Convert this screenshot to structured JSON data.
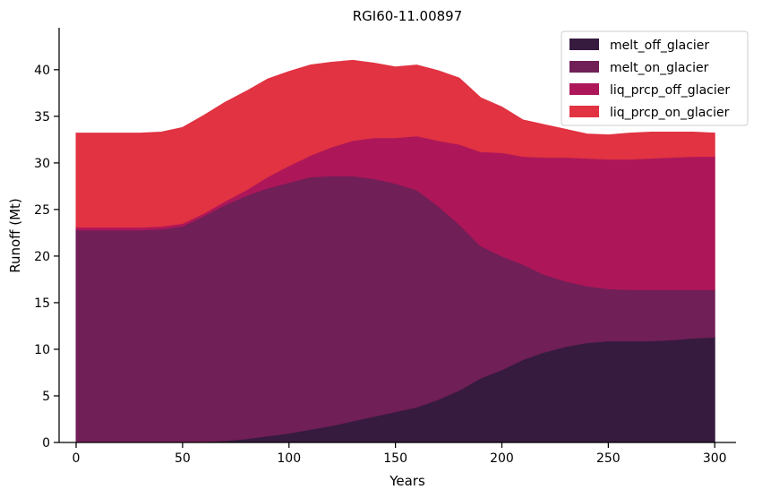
{
  "chart_data": {
    "type": "area",
    "stacked": true,
    "title": "RGI60-11.00897",
    "xlabel": "Years",
    "ylabel": "Runoff (Mt)",
    "xlim": [
      -8,
      310
    ],
    "ylim": [
      0,
      44.5
    ],
    "xticks": [
      0,
      50,
      100,
      150,
      200,
      250,
      300
    ],
    "yticks": [
      0,
      5,
      10,
      15,
      20,
      25,
      30,
      35,
      40
    ],
    "grid": false,
    "legend_position": "top-right",
    "x": [
      0,
      10,
      20,
      30,
      40,
      50,
      60,
      70,
      80,
      90,
      100,
      110,
      120,
      130,
      140,
      150,
      160,
      170,
      180,
      190,
      200,
      210,
      220,
      230,
      240,
      250,
      260,
      270,
      280,
      290,
      300
    ],
    "series": [
      {
        "name": "melt_off_glacier",
        "color": "#361b3f",
        "values": [
          0,
          0,
          0,
          0,
          0,
          0,
          0.1,
          0.2,
          0.4,
          0.7,
          1.0,
          1.4,
          1.8,
          2.3,
          2.8,
          3.3,
          3.8,
          4.6,
          5.6,
          6.9,
          7.8,
          8.9,
          9.7,
          10.3,
          10.7,
          10.9,
          10.9,
          10.9,
          11.0,
          11.2,
          11.3
        ]
      },
      {
        "name": "melt_on_glacier",
        "color": "#701f57",
        "values": [
          22.8,
          22.8,
          22.8,
          22.8,
          22.9,
          23.2,
          24.2,
          25.3,
          26.1,
          26.6,
          26.9,
          27.1,
          26.8,
          26.3,
          25.5,
          24.5,
          23.3,
          20.8,
          17.8,
          14.2,
          12.2,
          10.2,
          8.3,
          7.0,
          6.1,
          5.6,
          5.5,
          5.5,
          5.4,
          5.2,
          5.1
        ]
      },
      {
        "name": "liq_prcp_off_glacier",
        "color": "#ad1759",
        "values": [
          0.3,
          0.3,
          0.3,
          0.3,
          0.3,
          0.3,
          0.3,
          0.4,
          0.6,
          1.2,
          1.8,
          2.3,
          3.1,
          3.8,
          4.4,
          4.9,
          5.8,
          7.0,
          8.6,
          10.1,
          11.1,
          11.6,
          12.6,
          13.3,
          13.7,
          13.9,
          14.0,
          14.1,
          14.2,
          14.3,
          14.3
        ]
      },
      {
        "name": "liq_prcp_on_glacier",
        "color": "#e13342",
        "values": [
          10.1,
          10.1,
          10.1,
          10.1,
          10.1,
          10.3,
          10.5,
          10.6,
          10.6,
          10.5,
          10.1,
          9.7,
          9.1,
          8.6,
          8.0,
          7.6,
          7.6,
          7.5,
          7.1,
          5.8,
          4.9,
          3.9,
          3.5,
          3.0,
          2.6,
          2.6,
          2.8,
          2.8,
          2.7,
          2.6,
          2.5
        ]
      }
    ]
  }
}
